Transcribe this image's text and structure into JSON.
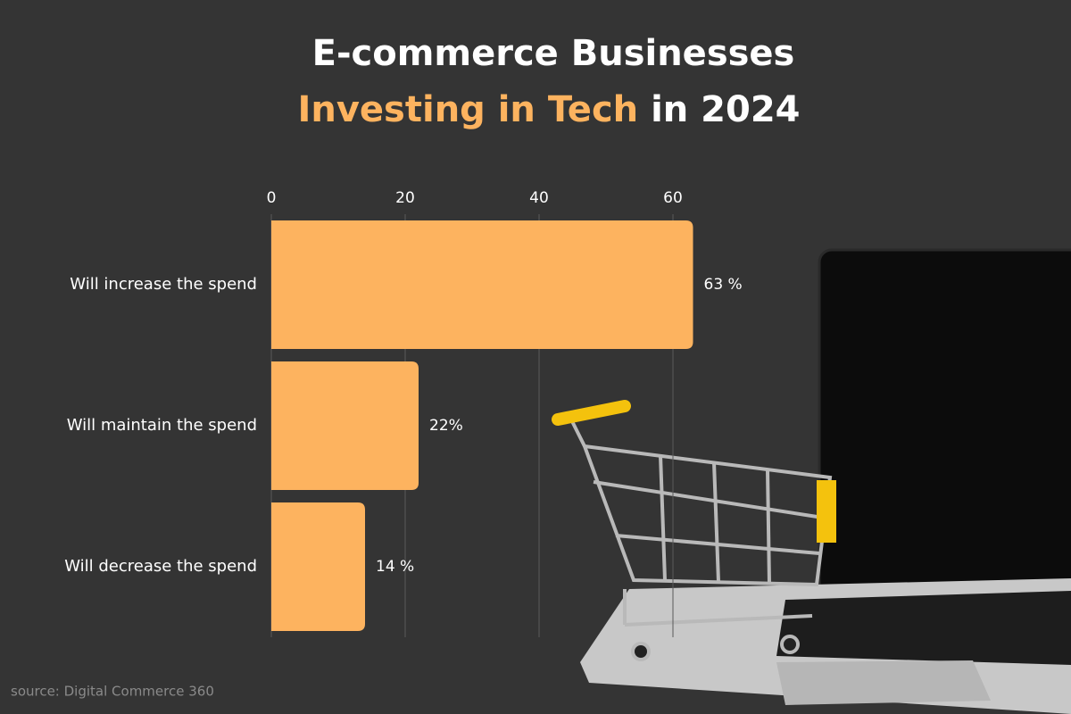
{
  "chart_data": {
    "type": "hbar",
    "title": [
      "E-commerce Businesses",
      "Investing in Tech",
      "in 2024"
    ],
    "categories": [
      "Will increase the spend",
      "Will maintain the spend",
      "Will decrease the spend"
    ],
    "values": [
      63,
      22,
      14
    ],
    "value_labels": [
      "63 %",
      "22%",
      "14 %"
    ],
    "color": "#fdb35f",
    "xlim": [
      0,
      80
    ],
    "xticks": [
      0,
      20,
      40,
      60
    ],
    "grid": true,
    "source": "source: Digital Commerce 360"
  }
}
